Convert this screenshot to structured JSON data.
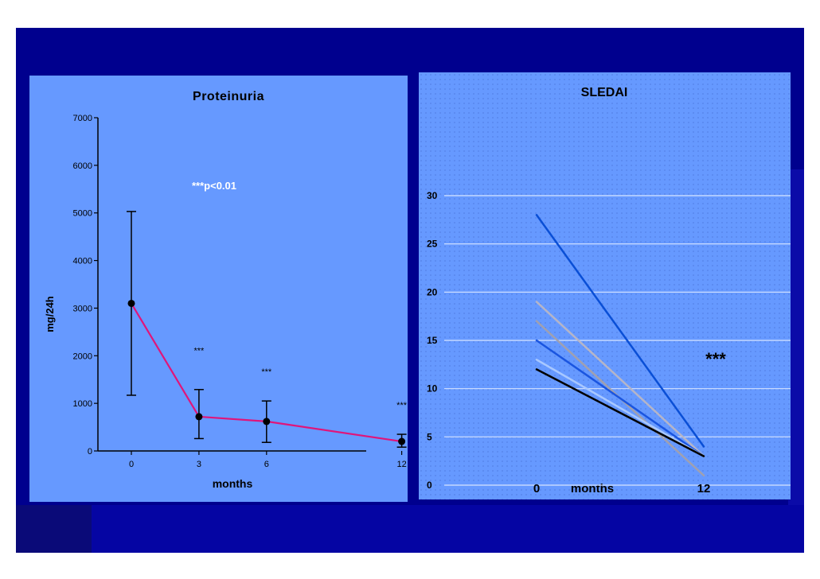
{
  "chart_data": [
    {
      "type": "line",
      "title": "Proteinuria",
      "xlabel": "months",
      "ylabel": "mg/24h",
      "categories": [
        "0",
        "3",
        "6",
        "12"
      ],
      "y_ticks": [
        "0",
        "1000",
        "2000",
        "3000",
        "4000",
        "5000",
        "6000",
        "7000"
      ],
      "ylim": [
        0,
        7000
      ],
      "series": [
        {
          "values": [
            3100,
            720,
            620,
            200
          ],
          "error_low": [
            1170,
            260,
            180,
            80
          ],
          "error_high": [
            5030,
            1290,
            1050,
            350
          ],
          "color": "#e0157a"
        }
      ],
      "annotations": [
        {
          "text": "***p<0.01",
          "x": 3,
          "y": 5500
        },
        {
          "text": "***",
          "x": 3,
          "y": 2050
        },
        {
          "text": "***",
          "x": 6,
          "y": 1600
        },
        {
          "text": "***",
          "x": 12,
          "y": 900
        }
      ],
      "grid": false
    },
    {
      "type": "line",
      "title": "SLEDAI",
      "categories": [
        "0",
        "12"
      ],
      "x_axis_label": "months",
      "y_ticks": [
        "0",
        "5",
        "10",
        "15",
        "20",
        "25",
        "30"
      ],
      "ylim": [
        0,
        30
      ],
      "grid": true,
      "series": [
        {
          "values": [
            28,
            4
          ],
          "color": "#0a4fd6"
        },
        {
          "values": [
            19,
            3
          ],
          "color": "#b5b5c8"
        },
        {
          "values": [
            17,
            1
          ],
          "color": "#a0a0b0"
        },
        {
          "values": [
            15,
            3
          ],
          "color": "#1a55e0"
        },
        {
          "values": [
            13,
            3
          ],
          "color": "#a8c8ff"
        },
        {
          "values": [
            12,
            3
          ],
          "color": "#000000"
        }
      ],
      "annotation": "***"
    }
  ]
}
